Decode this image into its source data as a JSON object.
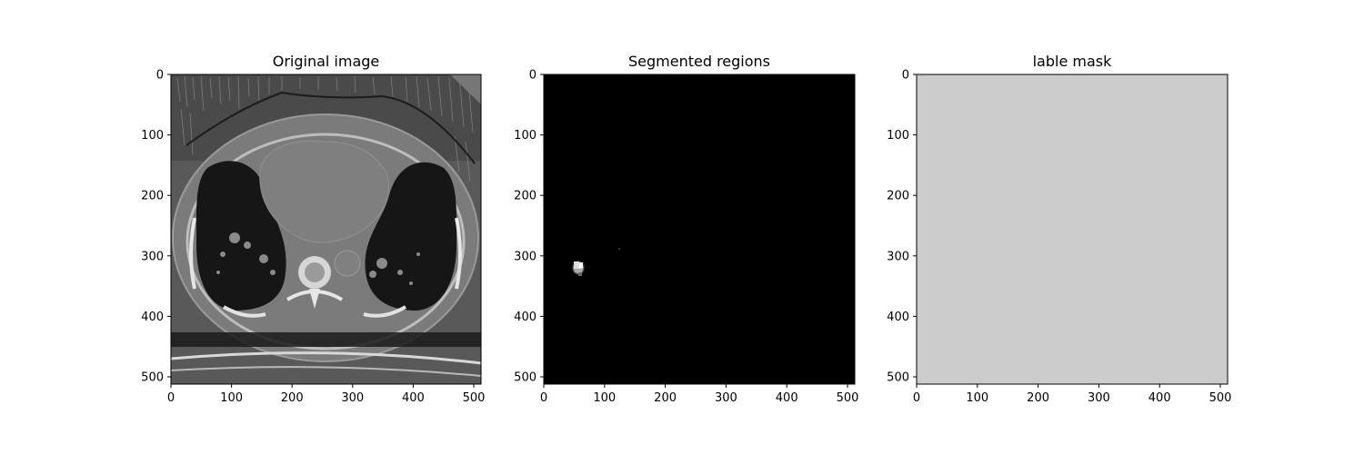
{
  "figure": {
    "panels": [
      {
        "title": "Original image",
        "image_name": "ct-chest-axial-slice",
        "x_ticks": [
          "0",
          "100",
          "200",
          "300",
          "400",
          "500"
        ],
        "y_ticks": [
          "0",
          "100",
          "200",
          "300",
          "400",
          "500"
        ]
      },
      {
        "title": "Segmented regions",
        "image_name": "segmented-regions-heatmap",
        "x_ticks": [
          "0",
          "100",
          "200",
          "300",
          "400",
          "500"
        ],
        "y_ticks": [
          "0",
          "100",
          "200",
          "300",
          "400",
          "500"
        ]
      },
      {
        "title": "lable mask",
        "image_name": "label-mask",
        "x_ticks": [
          "0",
          "100",
          "200",
          "300",
          "400",
          "500"
        ],
        "y_ticks": [
          "0",
          "100",
          "200",
          "300",
          "400",
          "500"
        ]
      }
    ],
    "axis_range": [
      0,
      512
    ],
    "tick_values": [
      0,
      100,
      200,
      300,
      400,
      500
    ],
    "colors": {
      "ct_background": "#585858",
      "ct_body": "#7a7a7a",
      "ct_lung": "#161616",
      "ct_bone": "#e8e8e8",
      "segmented_background": "#000000",
      "segmented_highlight": "#ffffff",
      "mask_background": "#cccccc",
      "mask_region": "#1a1a1a"
    }
  }
}
